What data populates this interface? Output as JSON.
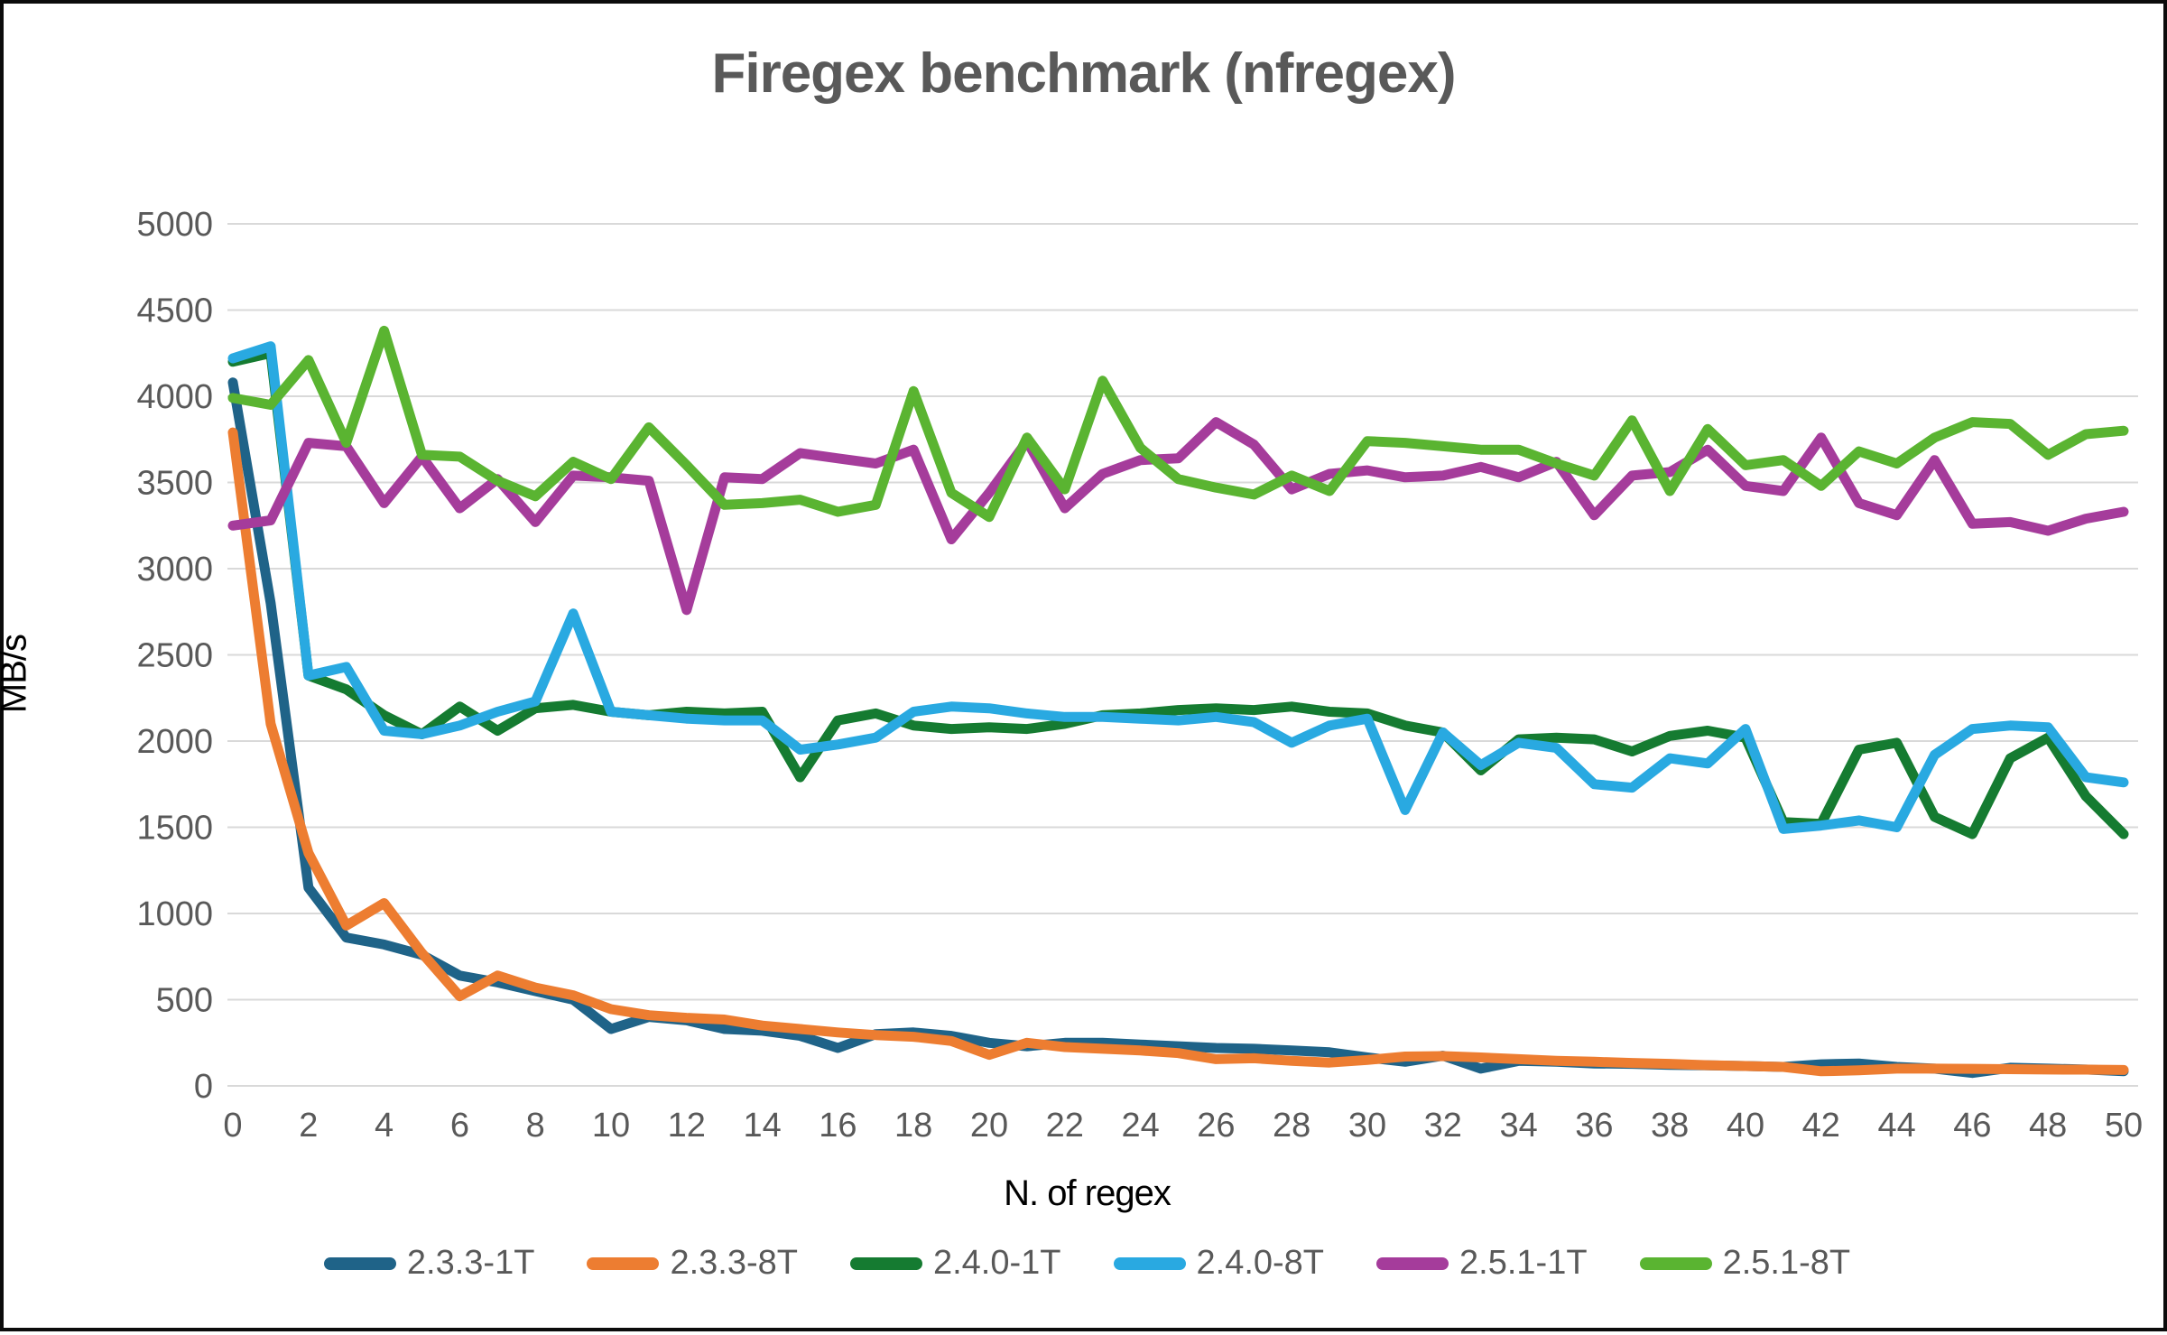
{
  "chart_data": {
    "type": "line",
    "title": "Firegex benchmark (nfregex)",
    "xlabel": "N. of regex",
    "ylabel": "MB/s",
    "xlim": [
      0,
      50
    ],
    "ylim": [
      0,
      5000
    ],
    "x_ticks": [
      0,
      2,
      4,
      6,
      8,
      10,
      12,
      14,
      16,
      18,
      20,
      22,
      24,
      26,
      28,
      30,
      32,
      34,
      36,
      38,
      40,
      42,
      44,
      46,
      48,
      50
    ],
    "y_ticks": [
      0,
      500,
      1000,
      1500,
      2000,
      2500,
      3000,
      3500,
      4000,
      4500,
      5000
    ],
    "grid": "horizontal",
    "legend_position": "bottom",
    "text_color": "#595959",
    "gridline_color": "#d9d9d9",
    "x": [
      0,
      1,
      2,
      3,
      4,
      5,
      6,
      7,
      8,
      9,
      10,
      11,
      12,
      13,
      14,
      15,
      16,
      17,
      18,
      19,
      20,
      21,
      22,
      23,
      24,
      25,
      26,
      27,
      28,
      29,
      30,
      31,
      32,
      33,
      34,
      35,
      36,
      37,
      38,
      39,
      40,
      41,
      42,
      43,
      44,
      45,
      46,
      47,
      48,
      49,
      50
    ],
    "series": [
      {
        "name": "2.3.3-1T",
        "color": "#1F6388",
        "values": [
          4080,
          2800,
          1150,
          860,
          820,
          760,
          640,
          600,
          550,
          500,
          330,
          400,
          380,
          330,
          320,
          290,
          220,
          300,
          310,
          290,
          250,
          230,
          250,
          250,
          240,
          230,
          220,
          215,
          205,
          195,
          165,
          140,
          175,
          100,
          145,
          140,
          130,
          128,
          122,
          119,
          115,
          110,
          125,
          130,
          110,
          100,
          75,
          105,
          100,
          95,
          85
        ]
      },
      {
        "name": "2.3.3-8T",
        "color": "#ED7D31",
        "values": [
          3790,
          2100,
          1350,
          930,
          1060,
          770,
          520,
          640,
          570,
          525,
          445,
          410,
          395,
          385,
          350,
          330,
          310,
          295,
          285,
          260,
          180,
          250,
          225,
          215,
          205,
          190,
          155,
          160,
          145,
          135,
          150,
          170,
          173,
          165,
          155,
          145,
          140,
          133,
          128,
          120,
          115,
          110,
          85,
          90,
          100,
          100,
          99,
          97,
          95,
          94,
          92
        ]
      },
      {
        "name": "2.4.0-1T",
        "color": "#157B31",
        "values": [
          4200,
          4250,
          2380,
          2300,
          2150,
          2040,
          2200,
          2060,
          2190,
          2210,
          2170,
          2150,
          2170,
          2160,
          2170,
          1790,
          2120,
          2160,
          2090,
          2070,
          2080,
          2070,
          2100,
          2150,
          2160,
          2180,
          2190,
          2180,
          2200,
          2170,
          2160,
          2090,
          2050,
          1830,
          2010,
          2020,
          2010,
          1940,
          2030,
          2060,
          2020,
          1530,
          1520,
          1950,
          1990,
          1560,
          1460,
          1900,
          2020,
          1680,
          1460
        ]
      },
      {
        "name": "2.4.0-8T",
        "color": "#29A9E1",
        "values": [
          4220,
          4290,
          2380,
          2430,
          2060,
          2040,
          2090,
          2170,
          2230,
          2740,
          2170,
          2150,
          2130,
          2120,
          2120,
          1950,
          1980,
          2020,
          2170,
          2200,
          2190,
          2160,
          2140,
          2140,
          2130,
          2120,
          2140,
          2110,
          1990,
          2090,
          2130,
          1600,
          2050,
          1860,
          1990,
          1960,
          1750,
          1730,
          1900,
          1870,
          2070,
          1490,
          1510,
          1540,
          1500,
          1920,
          2070,
          2090,
          2080,
          1790,
          1760
        ]
      },
      {
        "name": "2.5.1-1T",
        "color": "#A53C9B",
        "values": [
          3250,
          3280,
          3730,
          3710,
          3380,
          3650,
          3350,
          3520,
          3270,
          3540,
          3530,
          3510,
          2760,
          3530,
          3520,
          3670,
          3640,
          3610,
          3690,
          3170,
          3440,
          3740,
          3350,
          3550,
          3630,
          3640,
          3850,
          3720,
          3460,
          3550,
          3570,
          3530,
          3540,
          3590,
          3530,
          3620,
          3310,
          3540,
          3560,
          3690,
          3480,
          3450,
          3760,
          3380,
          3310,
          3630,
          3260,
          3270,
          3220,
          3290,
          3330
        ]
      },
      {
        "name": "2.5.1-8T",
        "color": "#5AB431",
        "values": [
          3990,
          3950,
          4210,
          3730,
          4380,
          3660,
          3650,
          3510,
          3420,
          3620,
          3520,
          3820,
          3600,
          3370,
          3380,
          3400,
          3330,
          3370,
          4030,
          3440,
          3300,
          3760,
          3460,
          4090,
          3700,
          3520,
          3470,
          3430,
          3540,
          3450,
          3740,
          3730,
          3710,
          3690,
          3690,
          3610,
          3540,
          3860,
          3450,
          3810,
          3600,
          3630,
          3480,
          3680,
          3610,
          3760,
          3850,
          3840,
          3660,
          3780,
          3800
        ]
      }
    ]
  }
}
